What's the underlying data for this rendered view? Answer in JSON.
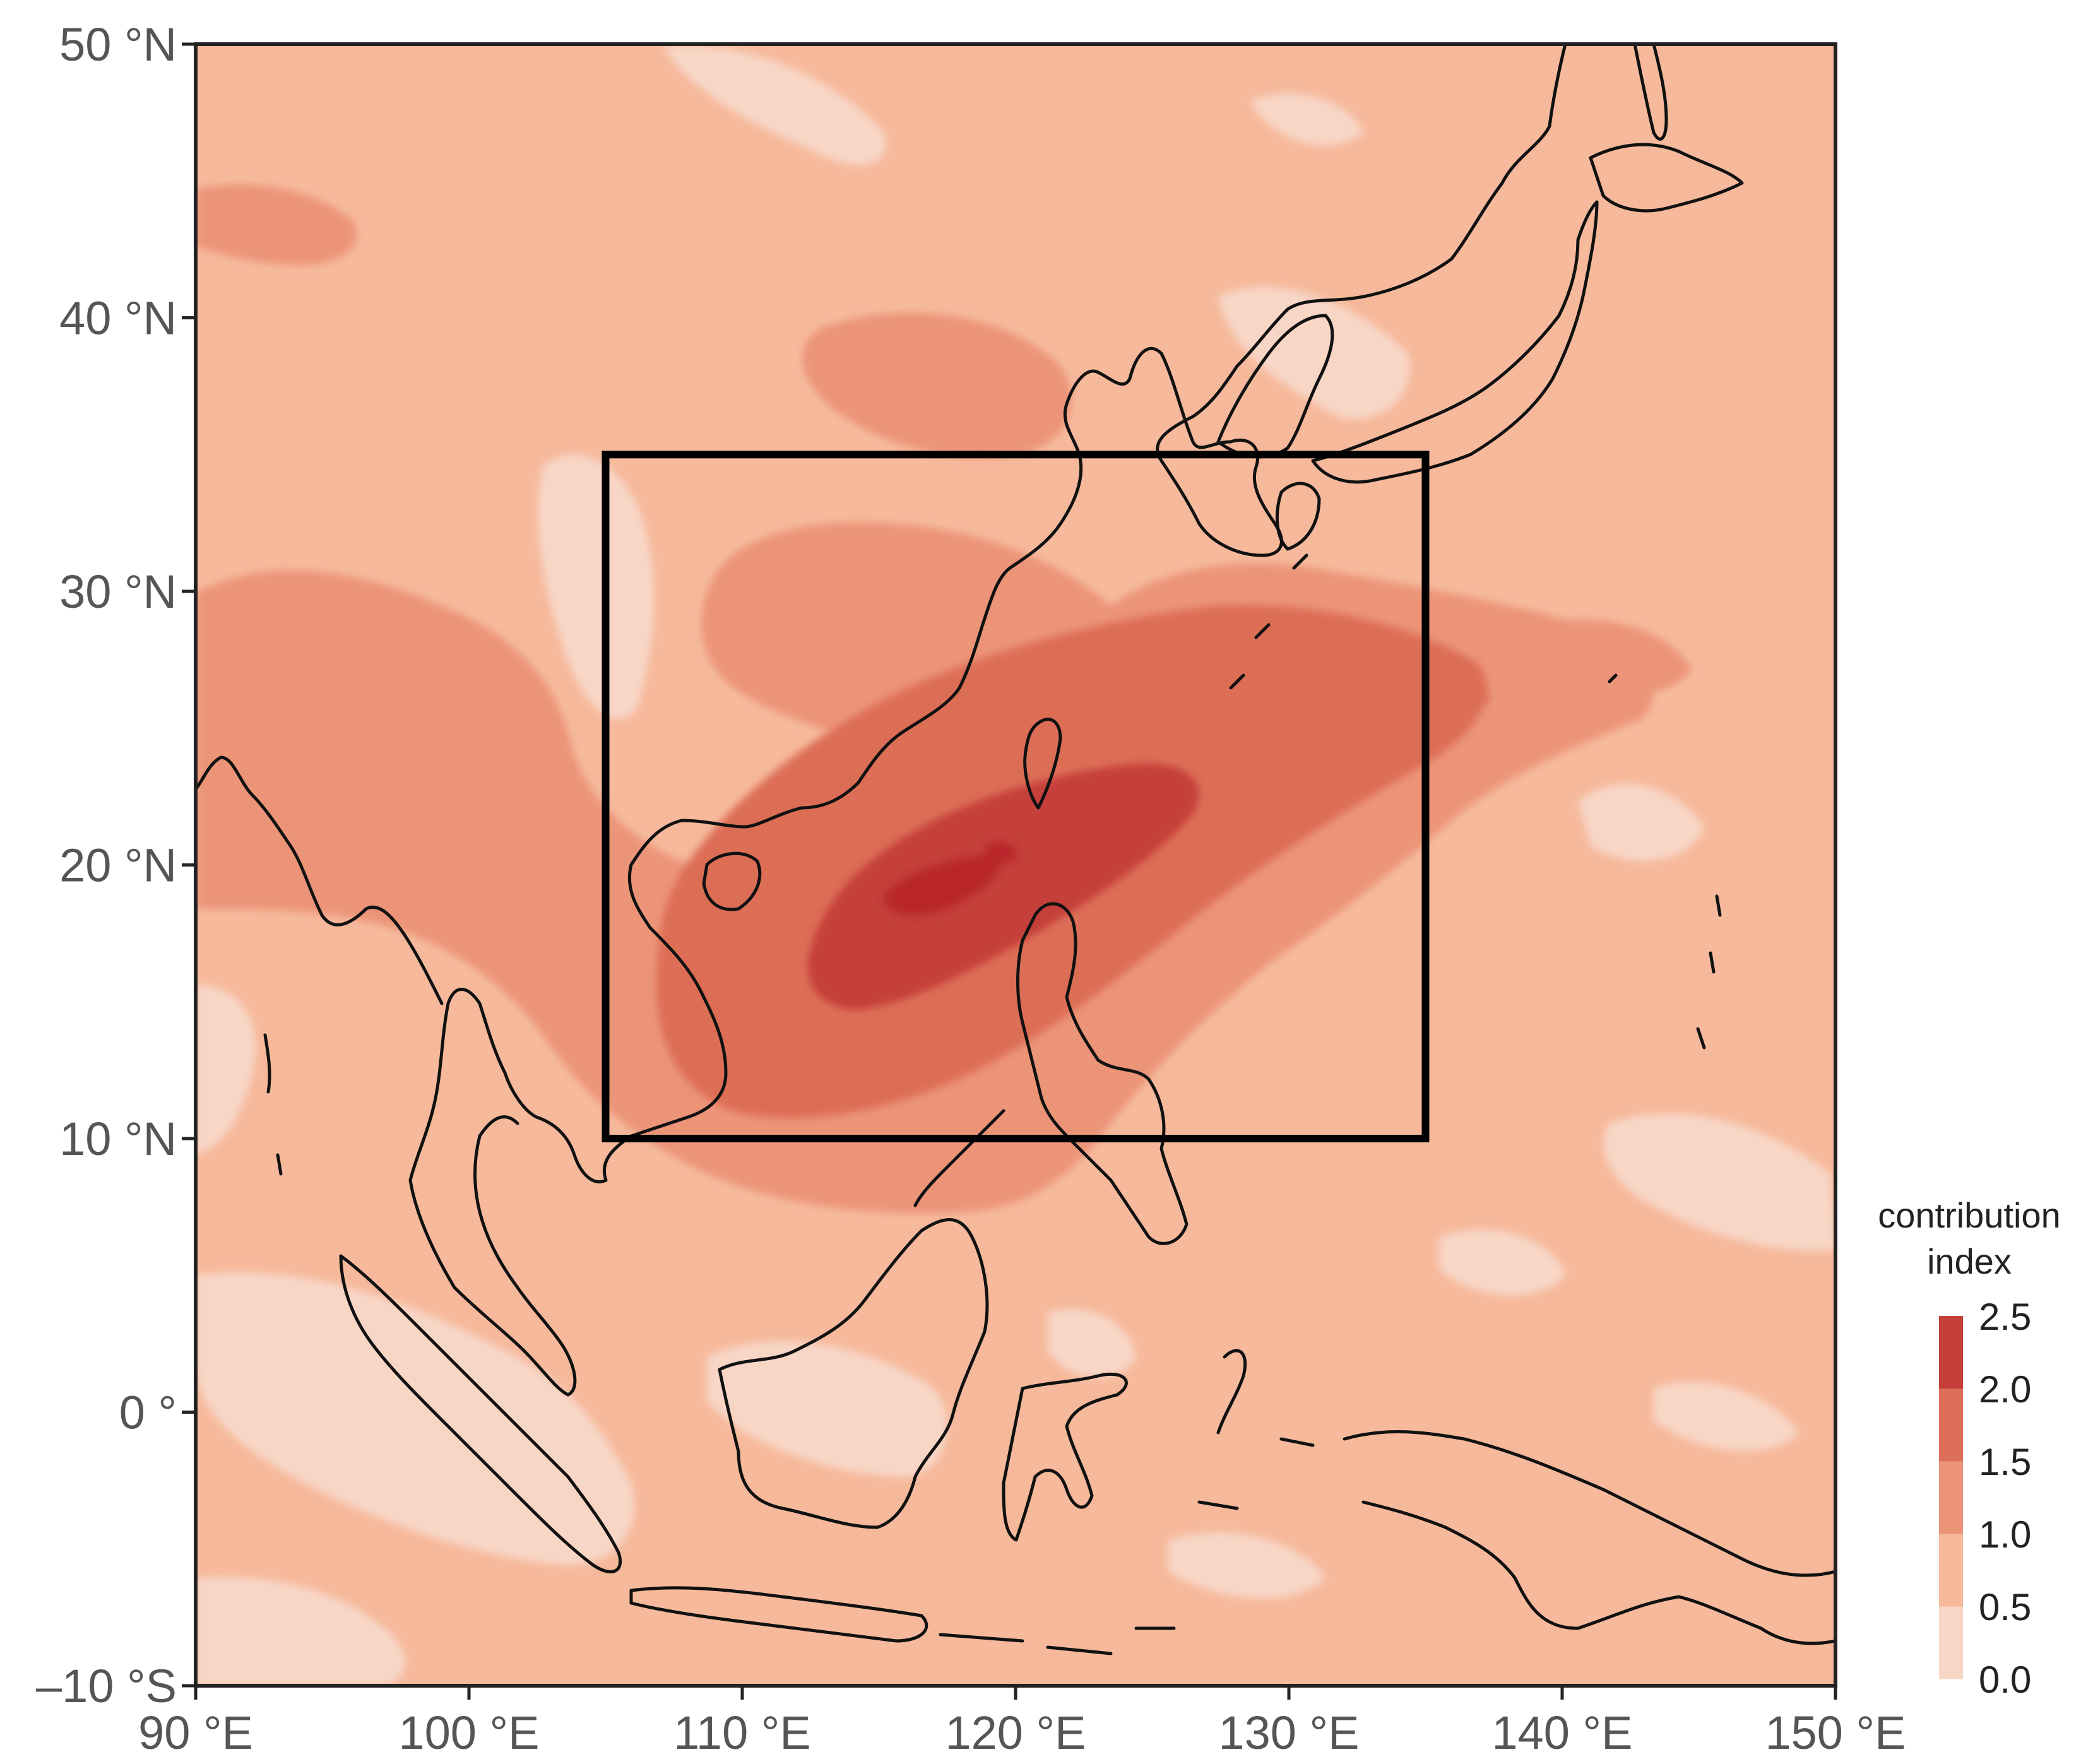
{
  "map": {
    "lon_range": [
      90,
      150
    ],
    "lat_range": [
      -10,
      50
    ],
    "x_ticks": [
      {
        "value": 90,
        "label": "90 °E"
      },
      {
        "value": 100,
        "label": "100 °E"
      },
      {
        "value": 110,
        "label": "110 °E"
      },
      {
        "value": 120,
        "label": "120 °E"
      },
      {
        "value": 130,
        "label": "130 °E"
      },
      {
        "value": 140,
        "label": "140 °E"
      },
      {
        "value": 150,
        "label": "150 °E"
      }
    ],
    "y_ticks": [
      {
        "value": 50,
        "label": "50 °N"
      },
      {
        "value": 40,
        "label": "40 °N"
      },
      {
        "value": 30,
        "label": "30 °N"
      },
      {
        "value": 20,
        "label": "20 °N"
      },
      {
        "value": 10,
        "label": "10 °N"
      },
      {
        "value": 0,
        "label": "0 °"
      },
      {
        "value": -10,
        "label": "–10 °S"
      }
    ],
    "highlight_box": {
      "lon": [
        105,
        135
      ],
      "lat": [
        10,
        35
      ]
    },
    "background_level_color": "#f6b99c"
  },
  "legend": {
    "title_line1": "contribution",
    "title_line2": "index",
    "levels": [
      "0.0",
      "0.5",
      "1.0",
      "1.5",
      "2.0",
      "2.5"
    ],
    "colors": [
      "#f8d6c6",
      "#f6b99c",
      "#ec9478",
      "#dd6e57",
      "#c5403b"
    ]
  }
}
